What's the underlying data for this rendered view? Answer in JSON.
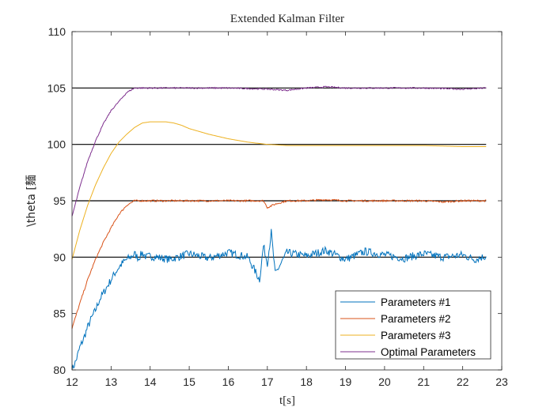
{
  "chart_data": {
    "type": "line",
    "title": "Extended Kalman Filter",
    "xlabel": "t[s]",
    "ylabel": "\\theta [麵",
    "xlim": [
      12,
      23
    ],
    "ylim": [
      80,
      110
    ],
    "xticks": [
      12,
      13,
      14,
      15,
      16,
      17,
      18,
      19,
      20,
      21,
      22,
      23
    ],
    "yticks": [
      80,
      85,
      90,
      95,
      100,
      105,
      110
    ],
    "grid": false,
    "legend_position": "bottom-right",
    "reference_lines": [
      90,
      95,
      100,
      105
    ],
    "reference_line_color": "#000000",
    "series": [
      {
        "name": "Parameters #1",
        "color": "#0072BD",
        "x": [
          12.0,
          12.1,
          12.2,
          12.3,
          12.4,
          12.5,
          12.6,
          12.7,
          12.8,
          12.9,
          13.0,
          13.1,
          13.2,
          13.3,
          13.4,
          13.5,
          13.6,
          13.7,
          13.8,
          13.9,
          14.0,
          14.5,
          15.0,
          15.5,
          16.0,
          16.5,
          16.8,
          16.9,
          17.0,
          17.1,
          17.2,
          17.5,
          18.0,
          18.5,
          19.0,
          19.5,
          20.0,
          20.5,
          21.0,
          21.5,
          22.0,
          22.3,
          22.6
        ],
        "y": [
          80.0,
          80.8,
          82.0,
          82.8,
          83.8,
          84.6,
          85.3,
          86.2,
          86.8,
          87.4,
          88.0,
          88.6,
          89.1,
          89.5,
          89.8,
          90.0,
          90.3,
          89.9,
          90.4,
          90.0,
          90.1,
          89.8,
          90.3,
          89.9,
          90.4,
          90.0,
          88.0,
          91.0,
          89.5,
          92.2,
          88.5,
          90.4,
          90.1,
          90.6,
          89.8,
          90.5,
          90.2,
          89.9,
          90.3,
          90.0,
          90.2,
          89.8,
          90.1
        ],
        "noise": 0.35
      },
      {
        "name": "Parameters #2",
        "color": "#D95319",
        "x": [
          12.0,
          12.2,
          12.4,
          12.6,
          12.8,
          13.0,
          13.2,
          13.4,
          13.6,
          13.8,
          14.0,
          14.5,
          15.0,
          15.5,
          16.0,
          16.5,
          16.9,
          17.0,
          17.2,
          17.5,
          18.0,
          18.5,
          19.0,
          19.5,
          20.0,
          20.5,
          21.0,
          21.5,
          22.0,
          22.6
        ],
        "y": [
          83.7,
          85.9,
          88.0,
          89.8,
          91.3,
          92.6,
          93.8,
          94.6,
          95.0,
          95.0,
          95.0,
          95.0,
          95.0,
          95.0,
          95.0,
          95.0,
          95.0,
          94.4,
          94.7,
          95.0,
          95.0,
          95.1,
          95.0,
          95.0,
          95.0,
          95.0,
          95.0,
          94.9,
          95.0,
          95.0
        ],
        "noise": 0.08
      },
      {
        "name": "Parameters #3",
        "color": "#EDB120",
        "x": [
          12.0,
          12.2,
          12.4,
          12.6,
          12.8,
          13.0,
          13.2,
          13.4,
          13.6,
          13.8,
          14.0,
          14.2,
          14.4,
          14.6,
          14.8,
          15.0,
          15.5,
          16.0,
          16.5,
          17.0,
          17.5,
          18.0,
          18.5,
          19.0,
          20.0,
          21.0,
          22.0,
          22.6
        ],
        "y": [
          89.8,
          92.4,
          94.6,
          96.4,
          97.9,
          99.2,
          100.2,
          100.9,
          101.5,
          101.9,
          102.0,
          102.0,
          102.0,
          101.9,
          101.7,
          101.4,
          100.9,
          100.5,
          100.2,
          100.0,
          99.9,
          99.9,
          99.9,
          99.9,
          99.9,
          99.9,
          99.8,
          99.8
        ],
        "noise": 0.0
      },
      {
        "name": "Optimal Parameters",
        "color": "#7E2F8E",
        "x": [
          12.0,
          12.2,
          12.4,
          12.6,
          12.8,
          13.0,
          13.2,
          13.4,
          13.6,
          13.8,
          14.0,
          15.0,
          16.0,
          17.0,
          17.5,
          18.0,
          18.5,
          19.0,
          20.0,
          21.0,
          22.0,
          22.6
        ],
        "y": [
          93.6,
          96.2,
          98.5,
          100.3,
          101.8,
          103.0,
          103.8,
          104.6,
          105.0,
          105.0,
          105.0,
          105.0,
          105.0,
          104.9,
          104.8,
          105.0,
          105.1,
          105.0,
          105.0,
          105.0,
          104.9,
          105.0
        ],
        "noise": 0.06
      }
    ]
  }
}
